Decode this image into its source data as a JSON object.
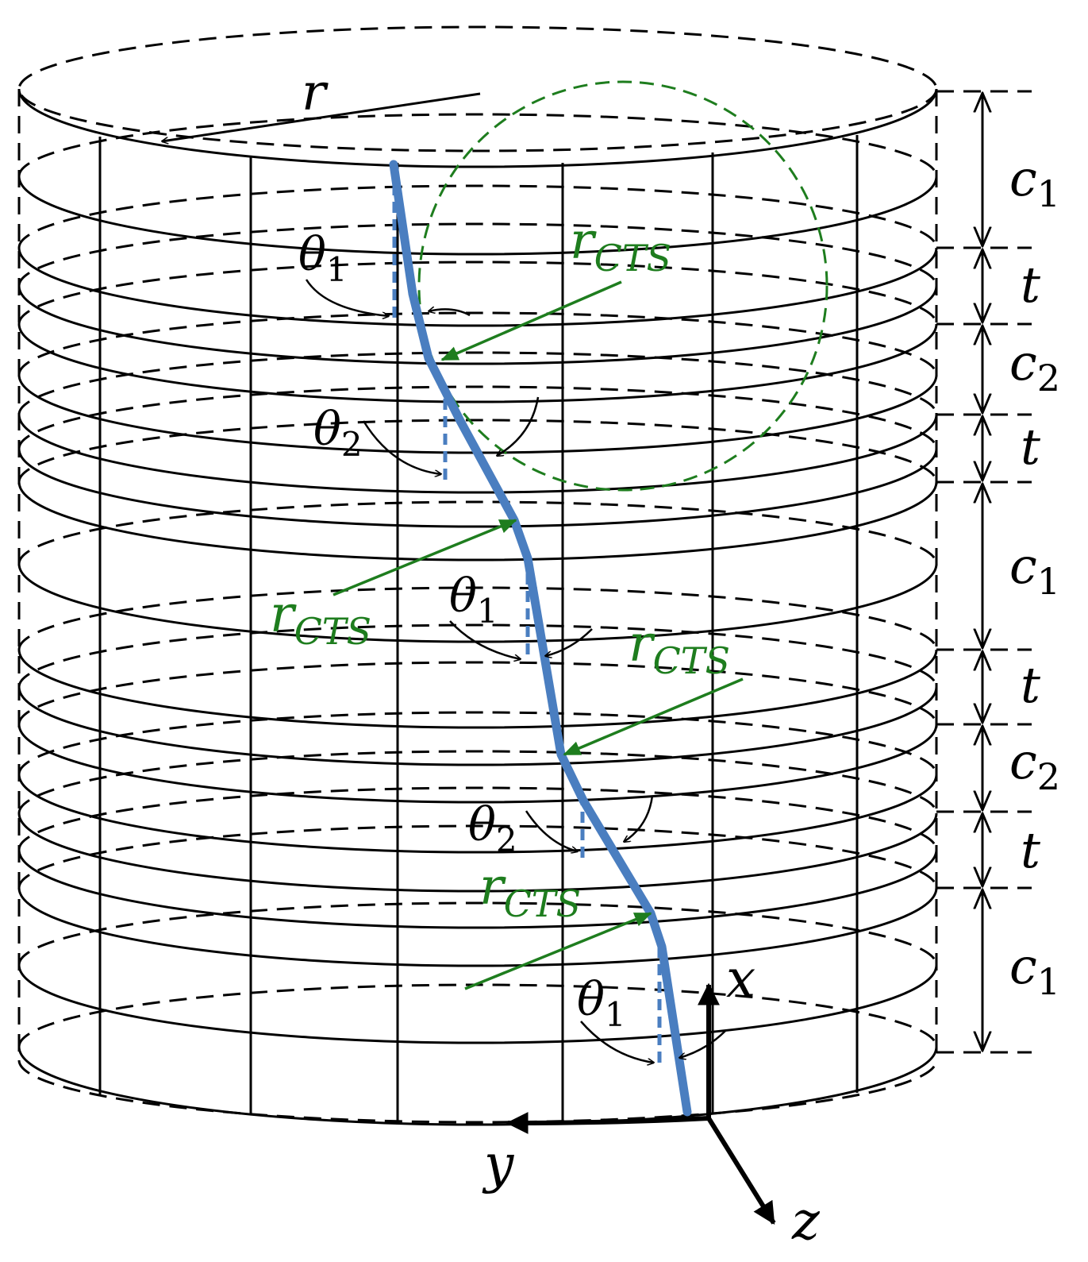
{
  "labels": {
    "radius": "r",
    "dimensions": [
      {
        "main": "c",
        "sub": "1"
      },
      {
        "main": "t",
        "sub": ""
      },
      {
        "main": "c",
        "sub": "2"
      },
      {
        "main": "t",
        "sub": ""
      },
      {
        "main": "c",
        "sub": "1"
      },
      {
        "main": "t",
        "sub": ""
      },
      {
        "main": "c",
        "sub": "2"
      },
      {
        "main": "t",
        "sub": ""
      },
      {
        "main": "c",
        "sub": "1"
      }
    ],
    "angles": [
      {
        "main": "θ",
        "sub": "1"
      },
      {
        "main": "θ",
        "sub": "2"
      },
      {
        "main": "θ",
        "sub": "1"
      },
      {
        "main": "θ",
        "sub": "2"
      },
      {
        "main": "θ",
        "sub": "1"
      }
    ],
    "rcts": [
      {
        "main": "r",
        "sub": "CTS"
      },
      {
        "main": "r",
        "sub": "CTS"
      },
      {
        "main": "r",
        "sub": "CTS"
      },
      {
        "main": "r",
        "sub": "CTS"
      }
    ],
    "axes": {
      "x": "x",
      "y": "y",
      "z": "z"
    }
  },
  "colors": {
    "path": "#4a7ec0",
    "rcts": "#1e7d1e",
    "structure": "#000000"
  }
}
